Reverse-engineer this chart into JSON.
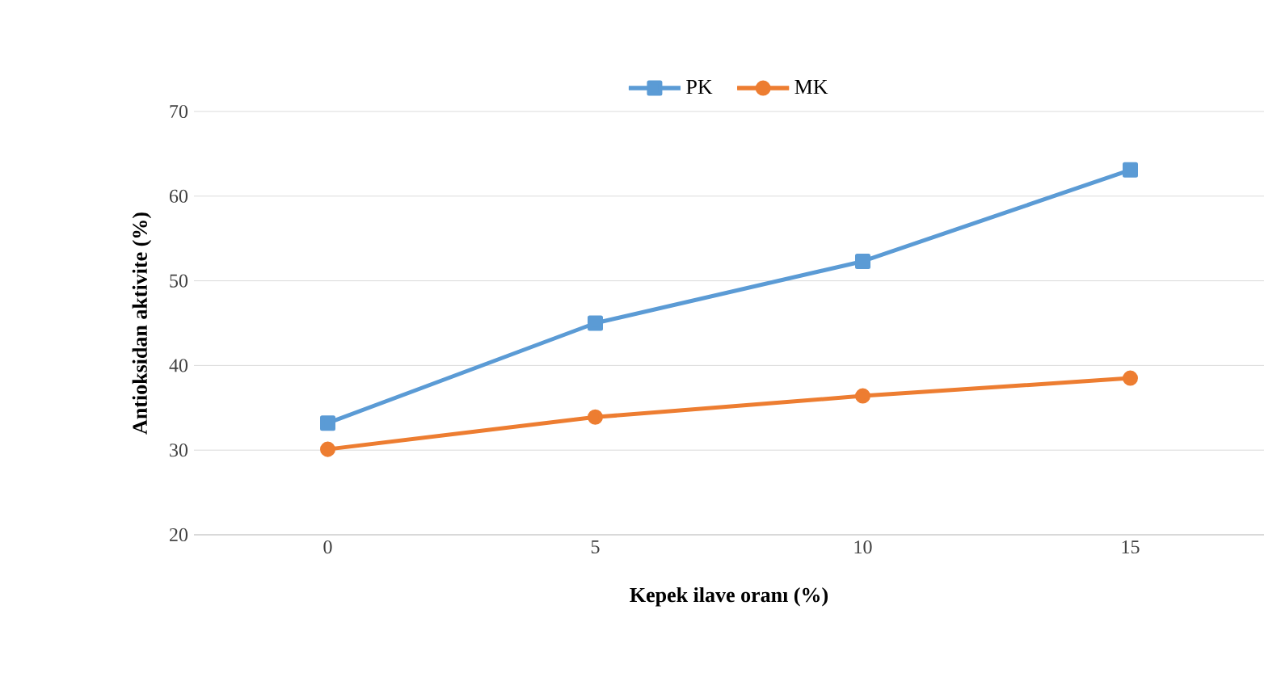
{
  "chart_data": {
    "type": "line",
    "xlabel": "Kepek ilave oranı (%)",
    "ylabel": "Antioksidan aktivite (%)",
    "categories": [
      "0",
      "5",
      "10",
      "15"
    ],
    "series": [
      {
        "name": "PK",
        "color": "#5b9bd5",
        "marker": "square",
        "values": [
          33.2,
          45,
          52.3,
          63.1
        ]
      },
      {
        "name": "MK",
        "color": "#ed7d31",
        "marker": "circle",
        "values": [
          30.1,
          33.9,
          36.4,
          38.5
        ]
      }
    ],
    "ylim": [
      20,
      70
    ],
    "yticks": [
      20,
      30,
      40,
      50,
      60,
      70
    ],
    "grid": "y",
    "legend": "top",
    "line_style": "solid"
  }
}
